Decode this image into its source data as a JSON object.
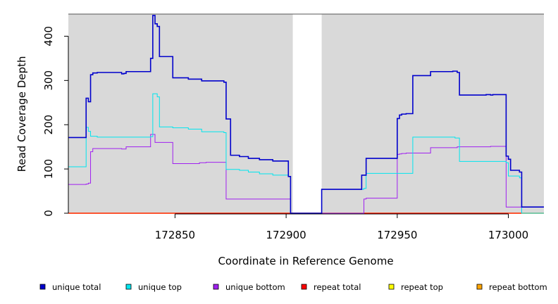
{
  "chart_data": {
    "type": "line",
    "title": "",
    "xlabel": "Coordinate in Reference Genome",
    "ylabel": "Read Coverage Depth",
    "xlim": [
      172802,
      173016
    ],
    "ylim": [
      0,
      450
    ],
    "x_ticks": [
      172850,
      172900,
      172950,
      173000
    ],
    "y_ticks": [
      0,
      100,
      200,
      300,
      400
    ],
    "shaded_regions": [
      [
        172802,
        172903
      ],
      [
        172916,
        173016
      ]
    ],
    "shade_color": "#d9d9d9",
    "legend_position": "bottom",
    "series": [
      {
        "name": "unique total",
        "color": "#0000cc",
        "points": [
          [
            172802,
            171
          ],
          [
            172810,
            171
          ],
          [
            172810,
            260
          ],
          [
            172811,
            260
          ],
          [
            172811,
            252
          ],
          [
            172812,
            252
          ],
          [
            172812,
            313
          ],
          [
            172813,
            313
          ],
          [
            172813,
            317
          ],
          [
            172815,
            317
          ],
          [
            172815,
            318
          ],
          [
            172826,
            318
          ],
          [
            172826,
            315
          ],
          [
            172827,
            315
          ],
          [
            172827,
            316
          ],
          [
            172828,
            316
          ],
          [
            172828,
            320
          ],
          [
            172839,
            320
          ],
          [
            172839,
            350
          ],
          [
            172840,
            350
          ],
          [
            172840,
            447
          ],
          [
            172841,
            447
          ],
          [
            172841,
            428
          ],
          [
            172842,
            428
          ],
          [
            172842,
            422
          ],
          [
            172843,
            422
          ],
          [
            172843,
            354
          ],
          [
            172849,
            354
          ],
          [
            172849,
            306
          ],
          [
            172856,
            306
          ],
          [
            172856,
            303
          ],
          [
            172862,
            303
          ],
          [
            172862,
            299
          ],
          [
            172872,
            299
          ],
          [
            172872,
            296
          ],
          [
            172873,
            296
          ],
          [
            172873,
            213
          ],
          [
            172875,
            213
          ],
          [
            172875,
            131
          ],
          [
            172879,
            131
          ],
          [
            172879,
            128
          ],
          [
            172883,
            128
          ],
          [
            172883,
            124
          ],
          [
            172888,
            124
          ],
          [
            172888,
            121
          ],
          [
            172894,
            121
          ],
          [
            172894,
            118
          ],
          [
            172901,
            118
          ],
          [
            172901,
            83
          ],
          [
            172902,
            83
          ],
          [
            172902,
            0
          ],
          [
            172916,
            0
          ],
          [
            172916,
            54
          ],
          [
            172934,
            54
          ],
          [
            172934,
            86
          ],
          [
            172936,
            86
          ],
          [
            172936,
            124
          ],
          [
            172950,
            124
          ],
          [
            172950,
            214
          ],
          [
            172951,
            214
          ],
          [
            172951,
            222
          ],
          [
            172952,
            222
          ],
          [
            172952,
            224
          ],
          [
            172954,
            224
          ],
          [
            172954,
            225
          ],
          [
            172957,
            225
          ],
          [
            172957,
            311
          ],
          [
            172965,
            311
          ],
          [
            172965,
            320
          ],
          [
            172975,
            320
          ],
          [
            172975,
            321
          ],
          [
            172977,
            321
          ],
          [
            172977,
            318
          ],
          [
            172978,
            318
          ],
          [
            172978,
            267
          ],
          [
            172990,
            267
          ],
          [
            172990,
            268
          ],
          [
            172992,
            268
          ],
          [
            172992,
            267
          ],
          [
            172993,
            267
          ],
          [
            172993,
            268
          ],
          [
            172999,
            268
          ],
          [
            172999,
            129
          ],
          [
            173000,
            129
          ],
          [
            173000,
            122
          ],
          [
            173001,
            122
          ],
          [
            173001,
            97
          ],
          [
            173005,
            97
          ],
          [
            173005,
            93
          ],
          [
            173006,
            93
          ],
          [
            173006,
            14
          ],
          [
            173016,
            14
          ]
        ]
      },
      {
        "name": "unique top",
        "color": "#00e5ee",
        "points": [
          [
            172802,
            105
          ],
          [
            172810,
            105
          ],
          [
            172810,
            194
          ],
          [
            172811,
            194
          ],
          [
            172811,
            185
          ],
          [
            172812,
            185
          ],
          [
            172812,
            174
          ],
          [
            172815,
            174
          ],
          [
            172815,
            172
          ],
          [
            172839,
            172
          ],
          [
            172839,
            173
          ],
          [
            172840,
            173
          ],
          [
            172840,
            270
          ],
          [
            172842,
            270
          ],
          [
            172842,
            263
          ],
          [
            172843,
            263
          ],
          [
            172843,
            195
          ],
          [
            172849,
            195
          ],
          [
            172849,
            193
          ],
          [
            172856,
            193
          ],
          [
            172856,
            190
          ],
          [
            172862,
            190
          ],
          [
            172862,
            184
          ],
          [
            172872,
            184
          ],
          [
            172872,
            182
          ],
          [
            172873,
            182
          ],
          [
            172873,
            99
          ],
          [
            172879,
            99
          ],
          [
            172879,
            97
          ],
          [
            172883,
            97
          ],
          [
            172883,
            93
          ],
          [
            172888,
            93
          ],
          [
            172888,
            89
          ],
          [
            172894,
            89
          ],
          [
            172894,
            86
          ],
          [
            172901,
            86
          ],
          [
            172901,
            83
          ],
          [
            172902,
            83
          ],
          [
            172902,
            0
          ],
          [
            172916,
            0
          ],
          [
            172916,
            54
          ],
          [
            172935,
            54
          ],
          [
            172935,
            56
          ],
          [
            172936,
            56
          ],
          [
            172936,
            90
          ],
          [
            172957,
            90
          ],
          [
            172957,
            172
          ],
          [
            172976,
            172
          ],
          [
            172976,
            170
          ],
          [
            172978,
            170
          ],
          [
            172978,
            117
          ],
          [
            172999,
            117
          ],
          [
            172999,
            114
          ],
          [
            173000,
            114
          ],
          [
            173000,
            84
          ],
          [
            173005,
            84
          ],
          [
            173005,
            80
          ],
          [
            173006,
            80
          ],
          [
            173006,
            0
          ],
          [
            173016,
            0
          ]
        ]
      },
      {
        "name": "unique bottom",
        "color": "#a020f0",
        "points": [
          [
            172802,
            65
          ],
          [
            172810,
            65
          ],
          [
            172810,
            66
          ],
          [
            172811,
            66
          ],
          [
            172811,
            68
          ],
          [
            172812,
            68
          ],
          [
            172812,
            139
          ],
          [
            172813,
            139
          ],
          [
            172813,
            146
          ],
          [
            172826,
            146
          ],
          [
            172826,
            145
          ],
          [
            172828,
            145
          ],
          [
            172828,
            150
          ],
          [
            172839,
            150
          ],
          [
            172839,
            178
          ],
          [
            172841,
            178
          ],
          [
            172841,
            160
          ],
          [
            172849,
            160
          ],
          [
            172849,
            112
          ],
          [
            172861,
            112
          ],
          [
            172861,
            114
          ],
          [
            172864,
            114
          ],
          [
            172864,
            115
          ],
          [
            172873,
            115
          ],
          [
            172873,
            32
          ],
          [
            172902,
            32
          ],
          [
            172902,
            0
          ],
          [
            172935,
            0
          ],
          [
            172935,
            32
          ],
          [
            172936,
            32
          ],
          [
            172936,
            34
          ],
          [
            172950,
            34
          ],
          [
            172950,
            133
          ],
          [
            172951,
            133
          ],
          [
            172951,
            134
          ],
          [
            172952,
            134
          ],
          [
            172952,
            135
          ],
          [
            172954,
            135
          ],
          [
            172954,
            136
          ],
          [
            172965,
            136
          ],
          [
            172965,
            148
          ],
          [
            172977,
            148
          ],
          [
            172977,
            150
          ],
          [
            172992,
            150
          ],
          [
            172992,
            151
          ],
          [
            172999,
            151
          ],
          [
            172999,
            14
          ],
          [
            173006,
            14
          ],
          [
            173006,
            0
          ],
          [
            173016,
            0
          ]
        ]
      },
      {
        "name": "repeat total",
        "color": "#ff0000",
        "points": [
          [
            172802,
            0
          ],
          [
            173016,
            0
          ]
        ]
      },
      {
        "name": "repeat top",
        "color": "#ffff00",
        "points": [
          [
            172802,
            0
          ],
          [
            173016,
            0
          ]
        ]
      },
      {
        "name": "repeat bottom",
        "color": "#ffa500",
        "points": [
          [
            172802,
            0
          ],
          [
            173016,
            0
          ]
        ]
      }
    ]
  }
}
